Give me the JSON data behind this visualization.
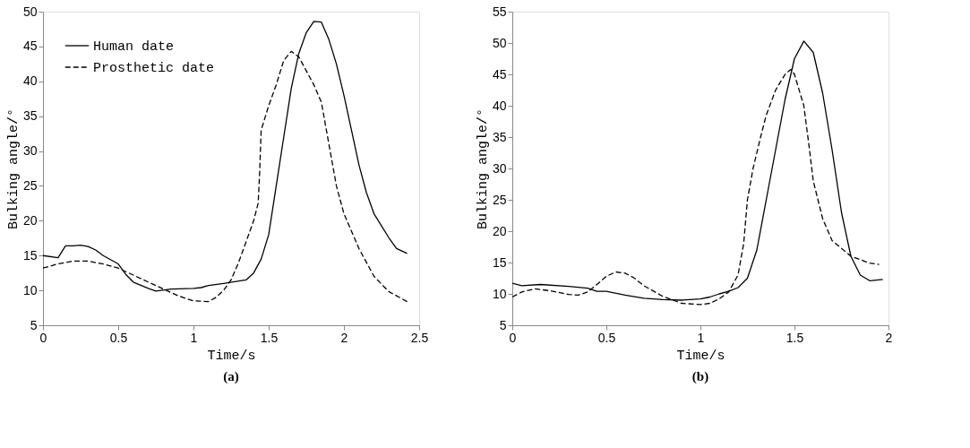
{
  "chart_data": [
    {
      "type": "line",
      "title": "(a)",
      "xlabel": "Time/s",
      "ylabel": "Bulking angle/°",
      "xlim": [
        0,
        2.5
      ],
      "ylim": [
        5,
        50
      ],
      "xticks": [
        0,
        0.5,
        1,
        1.5,
        2,
        2.5
      ],
      "yticks": [
        5,
        10,
        15,
        20,
        25,
        30,
        35,
        40,
        45,
        50
      ],
      "legend": "top left",
      "grid": false,
      "series": [
        {
          "name": "Human date",
          "color": "#000000",
          "line_style": "solid",
          "x": [
            0,
            0.1,
            0.15,
            0.2,
            0.25,
            0.3,
            0.35,
            0.4,
            0.5,
            0.55,
            0.6,
            0.7,
            0.75,
            0.85,
            1.0,
            1.05,
            1.1,
            1.2,
            1.35,
            1.4,
            1.45,
            1.5,
            1.55,
            1.6,
            1.65,
            1.7,
            1.75,
            1.8,
            1.85,
            1.9,
            1.95,
            2.0,
            2.05,
            2.1,
            2.15,
            2.2,
            2.3,
            2.35,
            2.42
          ],
          "values": [
            15,
            14.7,
            16.4,
            16.4,
            16.5,
            16.3,
            15.8,
            15,
            13.8,
            12.3,
            11.2,
            10.3,
            9.9,
            10.2,
            10.3,
            10.4,
            10.7,
            11,
            11.5,
            12.5,
            14.5,
            18,
            25,
            32,
            39,
            44,
            47,
            48.6,
            48.5,
            46,
            42.5,
            38,
            33,
            28,
            24,
            21,
            17.5,
            16,
            15.3
          ]
        },
        {
          "name": "Prosthetic date",
          "color": "#000000",
          "line_style": "dashed",
          "x": [
            0,
            0.1,
            0.2,
            0.3,
            0.4,
            0.5,
            0.6,
            0.7,
            0.8,
            0.9,
            1.0,
            1.1,
            1.15,
            1.2,
            1.25,
            1.3,
            1.35,
            1.4,
            1.43,
            1.44,
            1.45,
            1.5,
            1.55,
            1.6,
            1.65,
            1.7,
            1.75,
            1.8,
            1.85,
            1.9,
            1.95,
            2.0,
            2.1,
            2.2,
            2.3,
            2.42
          ],
          "values": [
            13.2,
            13.8,
            14.2,
            14.2,
            13.8,
            13.2,
            12.2,
            11.2,
            10.2,
            9.2,
            8.5,
            8.4,
            9,
            10,
            11.5,
            14,
            17,
            20,
            22.5,
            27,
            33,
            36.5,
            39.5,
            43,
            44.3,
            43.5,
            41.5,
            39.5,
            37,
            31,
            25,
            21,
            16,
            12,
            9.8,
            8.4
          ]
        }
      ]
    },
    {
      "type": "line",
      "title": "(b)",
      "xlabel": "Time/s",
      "ylabel": "Bulking angle/°",
      "xlim": [
        0,
        2
      ],
      "ylim": [
        5,
        55
      ],
      "xticks": [
        0,
        0.5,
        1,
        1.5,
        2
      ],
      "yticks": [
        5,
        10,
        15,
        20,
        25,
        30,
        35,
        40,
        45,
        50,
        55
      ],
      "legend": "top left",
      "grid": false,
      "series": [
        {
          "name": "Human date",
          "color": "#000000",
          "line_style": "solid",
          "x": [
            0,
            0.05,
            0.15,
            0.3,
            0.4,
            0.45,
            0.5,
            0.6,
            0.7,
            0.8,
            0.9,
            1.0,
            1.05,
            1.1,
            1.15,
            1.2,
            1.25,
            1.3,
            1.35,
            1.4,
            1.45,
            1.5,
            1.55,
            1.6,
            1.65,
            1.7,
            1.75,
            1.8,
            1.85,
            1.9,
            1.97
          ],
          "values": [
            11.7,
            11.3,
            11.5,
            11.2,
            10.9,
            10.4,
            10.4,
            9.8,
            9.3,
            9.1,
            9,
            9.2,
            9.5,
            10,
            10.4,
            11,
            12.5,
            17,
            25,
            33,
            41,
            47.5,
            50.3,
            48.5,
            42,
            33,
            23,
            16,
            13,
            12.1,
            12.3
          ]
        },
        {
          "name": "Prosthetic date",
          "color": "#000000",
          "line_style": "dashed",
          "x": [
            0,
            0.05,
            0.12,
            0.2,
            0.3,
            0.35,
            0.4,
            0.45,
            0.5,
            0.55,
            0.6,
            0.65,
            0.7,
            0.8,
            0.9,
            1.0,
            1.05,
            1.1,
            1.15,
            1.2,
            1.23,
            1.25,
            1.28,
            1.32,
            1.35,
            1.4,
            1.45,
            1.48,
            1.5,
            1.55,
            1.58,
            1.6,
            1.65,
            1.7,
            1.8,
            1.9,
            1.95
          ],
          "values": [
            9.5,
            10.3,
            10.8,
            10.5,
            9.9,
            9.8,
            10.3,
            11.5,
            12.8,
            13.5,
            13.3,
            12.5,
            11.3,
            9.6,
            8.5,
            8.3,
            8.5,
            9.2,
            10.3,
            13,
            18,
            25,
            30,
            35,
            38.5,
            42.5,
            45,
            45.8,
            45,
            40,
            33,
            28,
            22,
            18.5,
            16,
            14.9,
            14.7
          ]
        }
      ]
    }
  ]
}
